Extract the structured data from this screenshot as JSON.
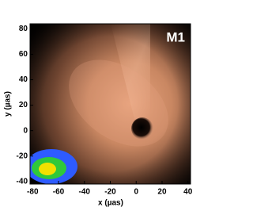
{
  "chart_data": {
    "type": "image",
    "title": "M1",
    "xlabel": "x (µas)",
    "ylabel": "y (µas)",
    "xlim": [
      -82,
      42
    ],
    "xticks": [
      -80,
      -60,
      -40,
      -20,
      0,
      20,
      40
    ],
    "ylim": [
      -42,
      84
    ],
    "yticks": [
      -40,
      -20,
      0,
      20,
      40,
      60,
      80
    ]
  }
}
